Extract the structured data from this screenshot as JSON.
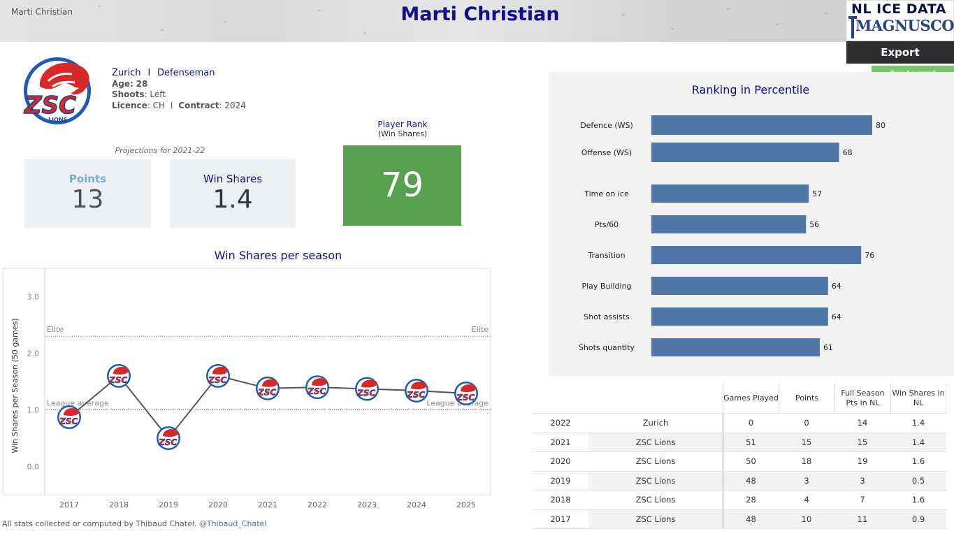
{
  "header": {
    "breadcrumb": "Marti Christian",
    "title": "Marti Christian",
    "brand_top": "NL ICE DATA",
    "brand_bottom": "MAGNUSCORSI",
    "export_label": "Export",
    "legend_label": "See Legend"
  },
  "player": {
    "team": "Zurich",
    "separator": "I",
    "position": "Defenseman",
    "age_label": "Age:",
    "age": "28",
    "shoots_label": "Shoots",
    "shoots": "Left",
    "licence_label": "Licence",
    "licence": "CH",
    "contract_label": "Contract",
    "contract": "2024"
  },
  "projections": {
    "label": "Projections for 2021-22",
    "points_label": "Points",
    "points": "13",
    "ws_label": "Win Shares",
    "ws": "1.4"
  },
  "rank": {
    "label": "Player Rank",
    "sub_label": "(Win Shares)",
    "value": "79",
    "color": "#56a04f"
  },
  "ws_chart": {
    "title": "Win Shares per season",
    "ylabel": "Win Shares per Season (50 games)",
    "elite_label": "Elite",
    "avg_label": "League average",
    "elite_value": 2.3,
    "avg_value": 1.0,
    "ylim": [
      -0.5,
      3.5
    ],
    "yticks": [
      "0.0",
      "1.0",
      "2.0",
      "3.0"
    ],
    "chart_data": {
      "type": "line",
      "x": [
        "2017",
        "2018",
        "2019",
        "2020",
        "2021",
        "2022",
        "2023",
        "2024",
        "2025"
      ],
      "values": [
        0.87,
        1.6,
        0.5,
        1.6,
        1.38,
        1.4,
        1.37,
        1.34,
        1.29
      ],
      "xlabel": "",
      "ylabel": "Win Shares per Season (50 games)",
      "ylim": [
        -0.5,
        3.5
      ]
    }
  },
  "percentile": {
    "title": "Ranking in Percentile",
    "bar_color": "#4e76a6",
    "chart_data": {
      "type": "bar",
      "orientation": "horizontal",
      "categories": [
        "Defence (WS)",
        "Offense (WS)",
        "Time on ice",
        "Pts/60",
        "Transition",
        "Play Building",
        "Shot assists",
        "Shots quantity"
      ],
      "values": [
        80,
        68,
        57,
        56,
        76,
        64,
        64,
        61
      ],
      "xlim": [
        0,
        100
      ]
    }
  },
  "table": {
    "headers": [
      "Games Played",
      "Points",
      "Full Season Pts in NL",
      "Win Shares in NL"
    ],
    "rows": [
      {
        "year": "2022",
        "team": "Zurich",
        "gp": "0",
        "pts": "0",
        "fsp": "14",
        "ws": "1.4"
      },
      {
        "year": "2021",
        "team": "ZSC Lions",
        "gp": "51",
        "pts": "15",
        "fsp": "15",
        "ws": "1.4"
      },
      {
        "year": "2020",
        "team": "ZSC Lions",
        "gp": "50",
        "pts": "18",
        "fsp": "19",
        "ws": "1.6"
      },
      {
        "year": "2019",
        "team": "ZSC Lions",
        "gp": "48",
        "pts": "3",
        "fsp": "3",
        "ws": "0.5"
      },
      {
        "year": "2018",
        "team": "ZSC Lions",
        "gp": "28",
        "pts": "4",
        "fsp": "7",
        "ws": "1.6"
      },
      {
        "year": "2017",
        "team": "ZSC Lions",
        "gp": "48",
        "pts": "10",
        "fsp": "11",
        "ws": "0.9"
      }
    ]
  },
  "footer": {
    "text": "All stats collected or computed by Thibaud Chatel.",
    "handle": "@Thibaud_Chatel"
  }
}
